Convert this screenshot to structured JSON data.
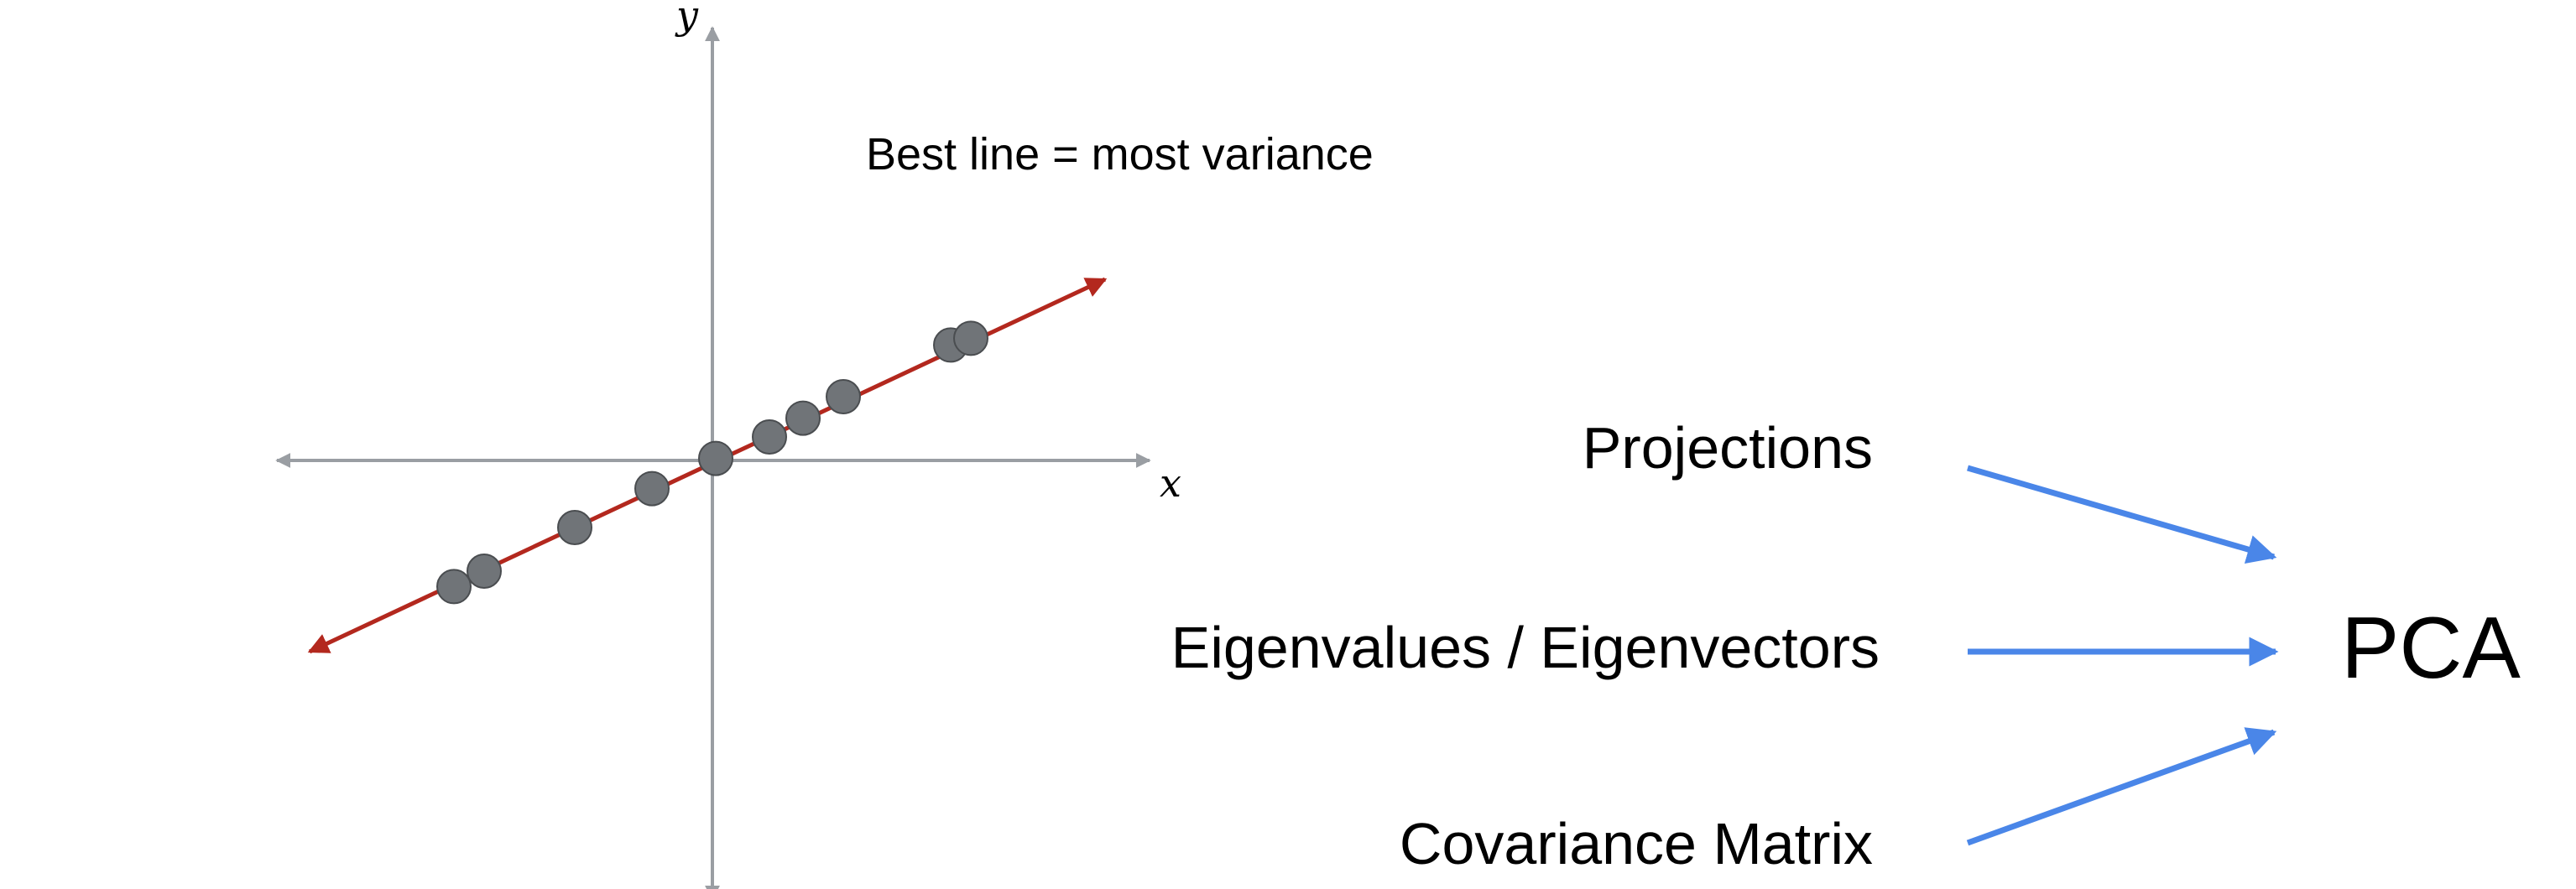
{
  "scatter": {
    "x_label": "x",
    "y_label": "y",
    "caption": "Best line = most variance",
    "points": [
      {
        "x": -3.85,
        "y": -1.88
      },
      {
        "x": -3.4,
        "y": -1.65
      },
      {
        "x": -2.05,
        "y": -1.0
      },
      {
        "x": -0.9,
        "y": -0.42
      },
      {
        "x": 0.05,
        "y": 0.03
      },
      {
        "x": 0.85,
        "y": 0.35
      },
      {
        "x": 1.35,
        "y": 0.63
      },
      {
        "x": 1.95,
        "y": 0.95
      },
      {
        "x": 3.55,
        "y": 1.72
      },
      {
        "x": 3.85,
        "y": 1.82
      }
    ],
    "line": {
      "from": {
        "x": -6.0,
        "y": -2.85
      },
      "to": {
        "x": 5.85,
        "y": 2.7
      }
    },
    "colors": {
      "axis": "#9a9ea3",
      "line": "#b3281e",
      "point_fill": "#707478",
      "point_stroke": "#4a4d50"
    }
  },
  "concepts": [
    {
      "label": "Projections"
    },
    {
      "label": "Eigenvalues / Eigenvectors"
    },
    {
      "label": "Covariance Matrix"
    }
  ],
  "target": {
    "label": "PCA"
  },
  "colors": {
    "arrow": "#4a86e8"
  }
}
